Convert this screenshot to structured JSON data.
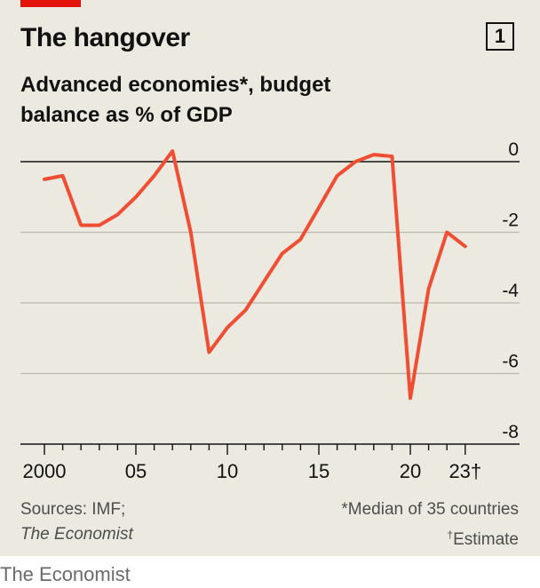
{
  "header": {
    "title": "The hangover",
    "chart_number": "1",
    "subtitle": "Advanced economies*, budget balance as % of GDP"
  },
  "colors": {
    "accent": "#e3120b",
    "line": "#f04e33",
    "grid": "#b8b8b0",
    "zero_line": "#121212"
  },
  "sources": {
    "left_line1": "Sources: IMF;",
    "left_line2": "The Economist",
    "note_median": "*Median of 35 countries",
    "note_estimate_mark": "†",
    "note_estimate": "Estimate"
  },
  "footer": {
    "brand": "The Economist"
  },
  "chart_data": {
    "type": "line",
    "xlabel": "",
    "ylabel": "",
    "x": [
      2000,
      2001,
      2002,
      2003,
      2004,
      2005,
      2006,
      2007,
      2008,
      2009,
      2010,
      2011,
      2012,
      2013,
      2014,
      2015,
      2016,
      2017,
      2018,
      2019,
      2020,
      2021,
      2022,
      2023
    ],
    "series": [
      {
        "values": [
          -0.5,
          -0.4,
          -1.8,
          -1.8,
          -1.5,
          -1.0,
          -0.4,
          0.3,
          -2.0,
          -5.4,
          -4.7,
          -4.2,
          -3.4,
          -2.6,
          -2.2,
          -1.3,
          -0.4,
          0.0,
          0.2,
          0.15,
          -6.7,
          -3.6,
          -2.0,
          -2.4
        ]
      }
    ],
    "ylim": [
      -8,
      0
    ],
    "xlim": [
      1999.5,
      2024
    ],
    "y_ticks": [
      0,
      -2,
      -4,
      -6,
      -8
    ],
    "y_tick_labels": [
      "0",
      "-2",
      "-4",
      "-6",
      "-8"
    ],
    "x_tick_labels": [
      {
        "year": 2000,
        "label": "2000"
      },
      {
        "year": 2005,
        "label": "05"
      },
      {
        "year": 2010,
        "label": "10"
      },
      {
        "year": 2015,
        "label": "15"
      },
      {
        "year": 2020,
        "label": "20"
      },
      {
        "year": 2023,
        "label": "23†"
      }
    ],
    "grid": true
  }
}
